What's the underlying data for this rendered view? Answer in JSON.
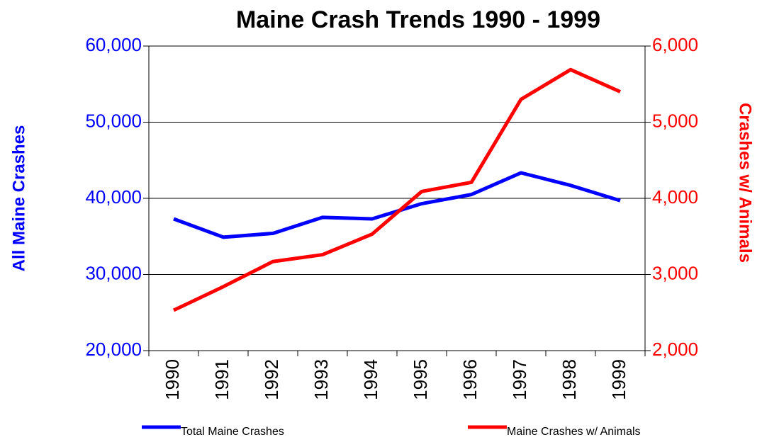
{
  "chart_data": {
    "type": "line",
    "title": "Maine Crash Trends 1990 - 1999",
    "y_label": "All Maine Crashes",
    "y2_label": "Crashes w/ Animals",
    "categories": [
      "1990",
      "1991",
      "1992",
      "1993",
      "1994",
      "1995",
      "1996",
      "1997",
      "1998",
      "1999"
    ],
    "series": [
      {
        "name": "Total Maine Crashes",
        "color": "#0000ff",
        "values": [
          37300,
          34900,
          35400,
          37500,
          37300,
          39300,
          40500,
          43350,
          41700,
          39700
        ]
      },
      {
        "name": "Maine Crashes w/ Animals",
        "color": "#ff0000",
        "axis": "y2",
        "values": [
          2530,
          2840,
          3170,
          3260,
          3530,
          4090,
          4210,
          5300,
          5690,
          5400
        ]
      }
    ],
    "ylim": [
      20000,
      60000
    ],
    "yticks": [
      {
        "value": 20000,
        "label": "20,000"
      },
      {
        "value": 30000,
        "label": "30,000"
      },
      {
        "value": 40000,
        "label": "40,000"
      },
      {
        "value": 50000,
        "label": "50,000"
      },
      {
        "value": 60000,
        "label": "60,000"
      }
    ],
    "y2lim": [
      2000,
      6000
    ],
    "y2ticks": [
      {
        "value": 2000,
        "label": "2,000"
      },
      {
        "value": 3000,
        "label": "3,000"
      },
      {
        "value": 4000,
        "label": "4,000"
      },
      {
        "value": 5000,
        "label": "5,000"
      },
      {
        "value": 6000,
        "label": "6,000"
      }
    ],
    "grid": true
  }
}
